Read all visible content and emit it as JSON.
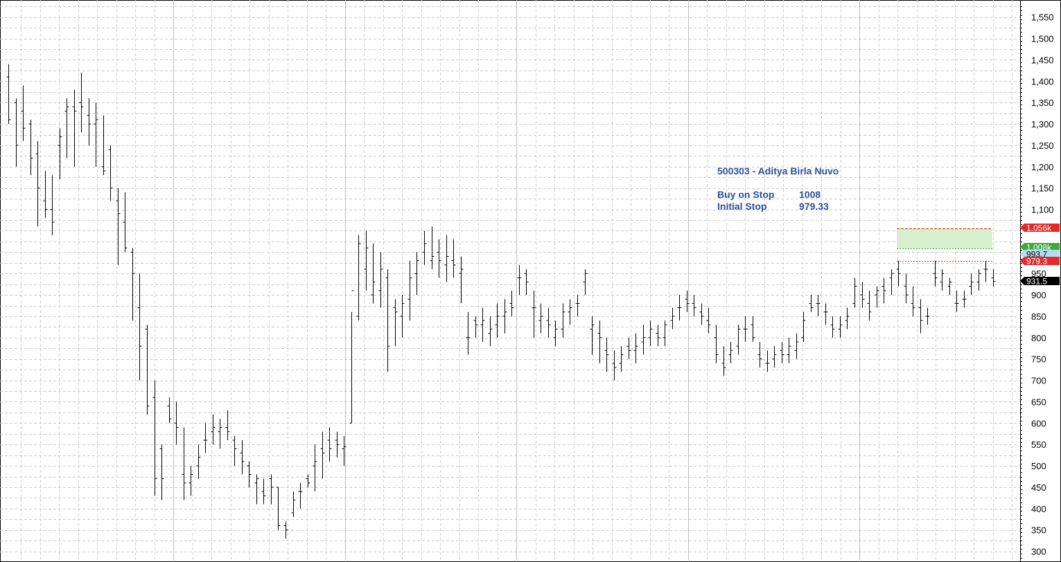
{
  "chart_data": {
    "type": "ohlc",
    "title": "500303 - Aditya Birla Nuvo",
    "ylim": [
      275,
      1590
    ],
    "y_ticks": [
      300,
      350,
      400,
      450,
      500,
      550,
      600,
      650,
      700,
      750,
      800,
      850,
      900,
      950,
      1000,
      1050,
      1100,
      1150,
      1200,
      1250,
      1300,
      1350,
      1400,
      1450,
      1500,
      1550
    ],
    "y_tick_labels": [
      "300",
      "350",
      "400",
      "450",
      "500",
      "550",
      "600",
      "650",
      "700",
      "750",
      "800",
      "850",
      "900",
      "950",
      "",
      "",
      "1,100",
      "1,150",
      "1,200",
      "1,250",
      "1,300",
      "1,350",
      "1,400",
      "1,450",
      "1,500",
      "1,550"
    ],
    "grid": true,
    "annotations": {
      "title": "500303 - Aditya Birla Nuvo",
      "buy_label": "Buy on Stop",
      "buy_value": "1008",
      "stop_label": "Initial Stop",
      "stop_value": "979.33"
    },
    "levels": [
      {
        "label": "1.056k",
        "value": 1056,
        "color": "#e62828"
      },
      {
        "label": "1.008k",
        "value": 1008,
        "color": "#3caa3c"
      },
      {
        "label": "993.7",
        "value": 993.7,
        "color": "#b4dcf0"
      },
      {
        "label": "979.3",
        "value": 979.3,
        "color": "#e62828"
      },
      {
        "label": "931.5",
        "value": 931.5,
        "color": "#000000"
      }
    ],
    "target_zone": {
      "low": 1008,
      "high": 1056,
      "color": "#d8efcf"
    },
    "bars": [
      [
        1410,
        1440,
        1300,
        1310
      ],
      [
        1350,
        1360,
        1200,
        1250
      ],
      [
        1330,
        1390,
        1260,
        1290
      ],
      [
        1300,
        1310,
        1180,
        1220
      ],
      [
        1230,
        1260,
        1060,
        1150
      ],
      [
        1120,
        1190,
        1080,
        1100
      ],
      [
        1100,
        1180,
        1040,
        1070
      ],
      [
        1250,
        1290,
        1170,
        1270
      ],
      [
        1330,
        1360,
        1220,
        1340
      ],
      [
        1340,
        1380,
        1200,
        1330
      ],
      [
        1350,
        1420,
        1280,
        1340
      ],
      [
        1320,
        1360,
        1250,
        1300
      ],
      [
        1300,
        1350,
        1200,
        1310
      ],
      [
        1200,
        1320,
        1180,
        1190
      ],
      [
        1240,
        1250,
        1120,
        1150
      ],
      [
        1120,
        1150,
        970,
        1090
      ],
      [
        1070,
        1140,
        1000,
        1010
      ],
      [
        1000,
        1010,
        840,
        950
      ],
      [
        870,
        950,
        700,
        780
      ],
      [
        820,
        830,
        620,
        640
      ],
      [
        660,
        700,
        430,
        470
      ],
      [
        540,
        550,
        420,
        470
      ],
      [
        640,
        660,
        600,
        610
      ],
      [
        600,
        650,
        550,
        590
      ],
      [
        480,
        590,
        420,
        460
      ],
      [
        460,
        500,
        430,
        480
      ],
      [
        500,
        550,
        470,
        520
      ],
      [
        560,
        600,
        530,
        560
      ],
      [
        580,
        620,
        550,
        590
      ],
      [
        580,
        610,
        540,
        590
      ],
      [
        590,
        630,
        560,
        580
      ],
      [
        560,
        570,
        500,
        540
      ],
      [
        530,
        560,
        480,
        510
      ],
      [
        500,
        510,
        450,
        480
      ],
      [
        460,
        480,
        410,
        470
      ],
      [
        440,
        470,
        410,
        430
      ],
      [
        470,
        480,
        410,
        450
      ],
      [
        450,
        450,
        350,
        360
      ],
      [
        360,
        370,
        330,
        350
      ],
      [
        390,
        440,
        380,
        420
      ],
      [
        440,
        460,
        400,
        440
      ],
      [
        470,
        480,
        450,
        460
      ],
      [
        500,
        550,
        440,
        510
      ],
      [
        540,
        580,
        470,
        530
      ],
      [
        560,
        590,
        510,
        540
      ],
      [
        560,
        580,
        520,
        550
      ],
      [
        540,
        570,
        500,
        545
      ],
      [
        600,
        860,
        600,
        910
      ],
      [
        850,
        1040,
        840,
        1020
      ],
      [
        960,
        1050,
        910,
        1010
      ],
      [
        900,
        1020,
        880,
        930
      ],
      [
        910,
        1000,
        870,
        960
      ],
      [
        940,
        960,
        720,
        780
      ],
      [
        870,
        890,
        780,
        860
      ],
      [
        850,
        900,
        800,
        880
      ],
      [
        890,
        980,
        840,
        940
      ],
      [
        950,
        1000,
        900,
        980
      ],
      [
        1000,
        1050,
        970,
        1020
      ],
      [
        980,
        1060,
        960,
        990
      ],
      [
        1000,
        1030,
        940,
        980
      ],
      [
        970,
        1040,
        930,
        990
      ],
      [
        980,
        1030,
        940,
        970
      ],
      [
        950,
        990,
        880,
        960
      ],
      [
        800,
        860,
        760,
        800
      ],
      [
        840,
        850,
        800,
        830
      ],
      [
        830,
        870,
        790,
        840
      ],
      [
        810,
        850,
        780,
        820
      ],
      [
        830,
        880,
        800,
        850
      ],
      [
        850,
        890,
        810,
        860
      ],
      [
        880,
        910,
        850,
        870
      ],
      [
        940,
        970,
        900,
        940
      ],
      [
        950,
        960,
        900,
        930
      ],
      [
        870,
        910,
        800,
        870
      ],
      [
        840,
        880,
        810,
        850
      ],
      [
        840,
        870,
        800,
        830
      ],
      [
        800,
        840,
        780,
        820
      ],
      [
        820,
        880,
        800,
        860
      ],
      [
        860,
        890,
        830,
        870
      ],
      [
        880,
        900,
        850,
        880
      ],
      [
        930,
        960,
        900,
        950
      ],
      [
        820,
        850,
        760,
        830
      ],
      [
        810,
        840,
        740,
        800
      ],
      [
        770,
        800,
        720,
        760
      ],
      [
        740,
        770,
        700,
        730
      ],
      [
        740,
        780,
        720,
        760
      ],
      [
        780,
        800,
        750,
        770
      ],
      [
        770,
        810,
        740,
        780
      ],
      [
        790,
        830,
        760,
        800
      ],
      [
        800,
        840,
        780,
        820
      ],
      [
        810,
        830,
        780,
        800
      ],
      [
        800,
        840,
        780,
        830
      ],
      [
        840,
        870,
        820,
        850
      ],
      [
        870,
        900,
        840,
        870
      ],
      [
        890,
        910,
        860,
        880
      ],
      [
        880,
        900,
        850,
        870
      ],
      [
        860,
        880,
        830,
        850
      ],
      [
        840,
        870,
        810,
        830
      ],
      [
        800,
        830,
        740,
        760
      ],
      [
        740,
        780,
        710,
        730
      ],
      [
        760,
        790,
        740,
        770
      ],
      [
        780,
        830,
        760,
        820
      ],
      [
        820,
        850,
        790,
        820
      ],
      [
        830,
        850,
        790,
        800
      ],
      [
        760,
        790,
        730,
        750
      ],
      [
        740,
        770,
        720,
        740
      ],
      [
        750,
        780,
        730,
        760
      ],
      [
        770,
        790,
        740,
        760
      ],
      [
        760,
        800,
        740,
        780
      ],
      [
        770,
        810,
        750,
        790
      ],
      [
        800,
        860,
        790,
        840
      ],
      [
        880,
        900,
        860,
        870
      ],
      [
        880,
        900,
        850,
        880
      ],
      [
        860,
        880,
        830,
        860
      ],
      [
        830,
        850,
        800,
        820
      ],
      [
        820,
        850,
        800,
        830
      ],
      [
        840,
        870,
        820,
        850
      ],
      [
        880,
        940,
        870,
        920
      ],
      [
        900,
        930,
        870,
        890
      ],
      [
        880,
        910,
        840,
        860
      ],
      [
        900,
        920,
        870,
        910
      ],
      [
        920,
        940,
        880,
        910
      ],
      [
        940,
        960,
        900,
        950
      ],
      [
        960,
        980,
        920,
        950
      ],
      [
        920,
        950,
        880,
        900
      ],
      [
        880,
        920,
        850,
        870
      ],
      [
        870,
        890,
        810,
        840
      ],
      [
        850,
        870,
        830,
        850
      ],
      [
        950,
        980,
        920,
        940
      ],
      [
        930,
        960,
        910,
        950
      ],
      [
        920,
        940,
        900,
        930
      ],
      [
        880,
        910,
        860,
        880
      ],
      [
        890,
        910,
        870,
        890
      ],
      [
        920,
        950,
        900,
        930
      ],
      [
        930,
        960,
        910,
        950
      ],
      [
        960,
        980,
        930,
        960
      ],
      [
        940,
        960,
        920,
        931.5
      ]
    ]
  }
}
